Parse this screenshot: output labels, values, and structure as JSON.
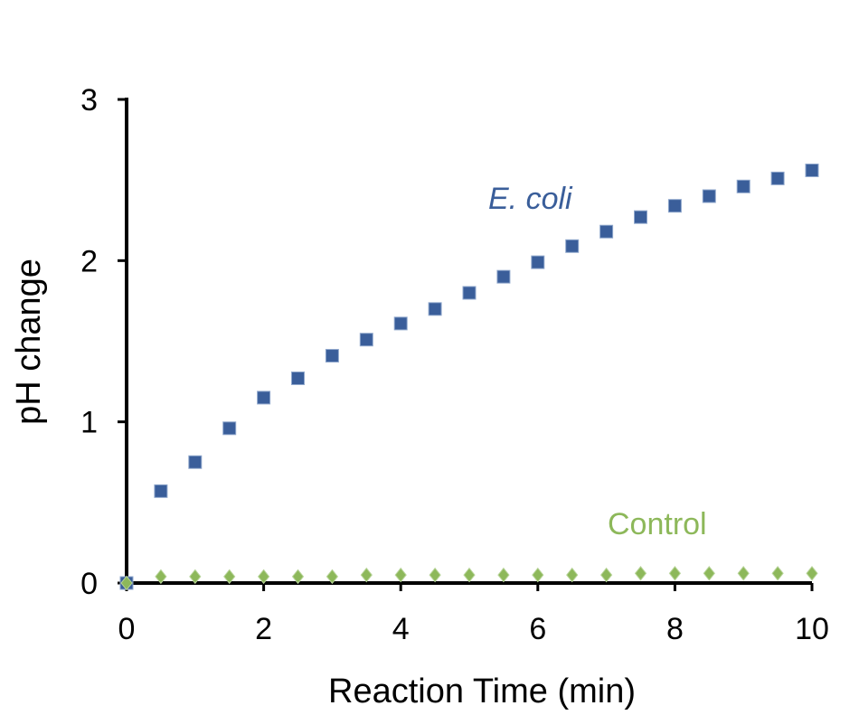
{
  "chart_data": {
    "type": "scatter",
    "title": "",
    "xlabel": "Reaction Time (min)",
    "ylabel": "pH change",
    "xlim": [
      0,
      10
    ],
    "ylim": [
      0,
      3
    ],
    "xticks": [
      "0",
      "2",
      "4",
      "6",
      "8",
      "10"
    ],
    "yticks": [
      "0",
      "1",
      "2",
      "3"
    ],
    "grid": false,
    "series": [
      {
        "name": "E. coli",
        "marker": "square",
        "color": "#3A5E9A",
        "x": [
          0,
          0.5,
          1.0,
          1.5,
          2.0,
          2.5,
          3.0,
          3.5,
          4.0,
          4.5,
          5.0,
          5.5,
          6.0,
          6.5,
          7.0,
          7.5,
          8.0,
          8.5,
          9.0,
          9.5,
          10.0
        ],
        "y": [
          0,
          0.57,
          0.75,
          0.96,
          1.15,
          1.27,
          1.41,
          1.51,
          1.61,
          1.7,
          1.8,
          1.9,
          1.99,
          2.09,
          2.18,
          2.27,
          2.34,
          2.4,
          2.46,
          2.51,
          2.56
        ]
      },
      {
        "name": "Control",
        "marker": "diamond",
        "color": "#8DB85A",
        "x": [
          0,
          0.5,
          1.0,
          1.5,
          2.0,
          2.5,
          3.0,
          3.5,
          4.0,
          4.5,
          5.0,
          5.5,
          6.0,
          6.5,
          7.0,
          7.5,
          8.0,
          8.5,
          9.0,
          9.5,
          10.0
        ],
        "y": [
          0,
          0.04,
          0.04,
          0.04,
          0.04,
          0.04,
          0.04,
          0.05,
          0.05,
          0.05,
          0.05,
          0.05,
          0.05,
          0.05,
          0.05,
          0.06,
          0.06,
          0.06,
          0.06,
          0.06,
          0.06
        ]
      }
    ],
    "annotations": [
      {
        "text": "E. coli",
        "series": "E. coli",
        "italic": true
      },
      {
        "text": "Control",
        "series": "Control",
        "italic": false
      }
    ]
  }
}
